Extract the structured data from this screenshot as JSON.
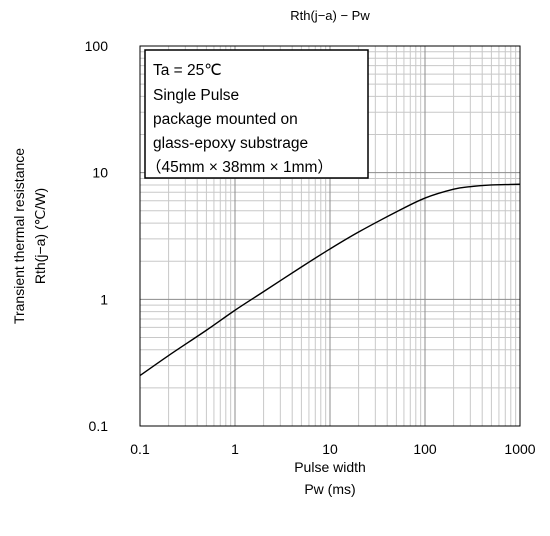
{
  "chart_data": {
    "type": "line",
    "title": "Rth(j−a) − Pw",
    "xlabel": [
      "Pulse width",
      "Pw (ms)"
    ],
    "ylabel": [
      "Transient thermal resistance",
      "Rth(j−a) (℃/W)"
    ],
    "x_scale": "log",
    "y_scale": "log",
    "xlim": [
      0.1,
      1000
    ],
    "ylim": [
      0.1,
      100
    ],
    "x_ticks": [
      "0.1",
      "1",
      "10",
      "100",
      "1000"
    ],
    "y_ticks": [
      "0.1",
      "1",
      "10",
      "100"
    ],
    "grid": true,
    "annotation": [
      "Ta = 25℃",
      "Single Pulse",
      "package mounted on",
      "glass-epoxy substrage",
      "（45mm × 38mm × 1mm）"
    ],
    "series": [
      {
        "x": [
          0.1,
          0.2,
          0.5,
          1,
          2,
          5,
          10,
          20,
          50,
          100,
          200,
          300,
          500,
          700,
          1000
        ],
        "y": [
          0.25,
          0.36,
          0.57,
          0.82,
          1.15,
          1.8,
          2.5,
          3.4,
          4.9,
          6.3,
          7.4,
          7.75,
          8.0,
          8.05,
          8.1
        ]
      }
    ]
  }
}
